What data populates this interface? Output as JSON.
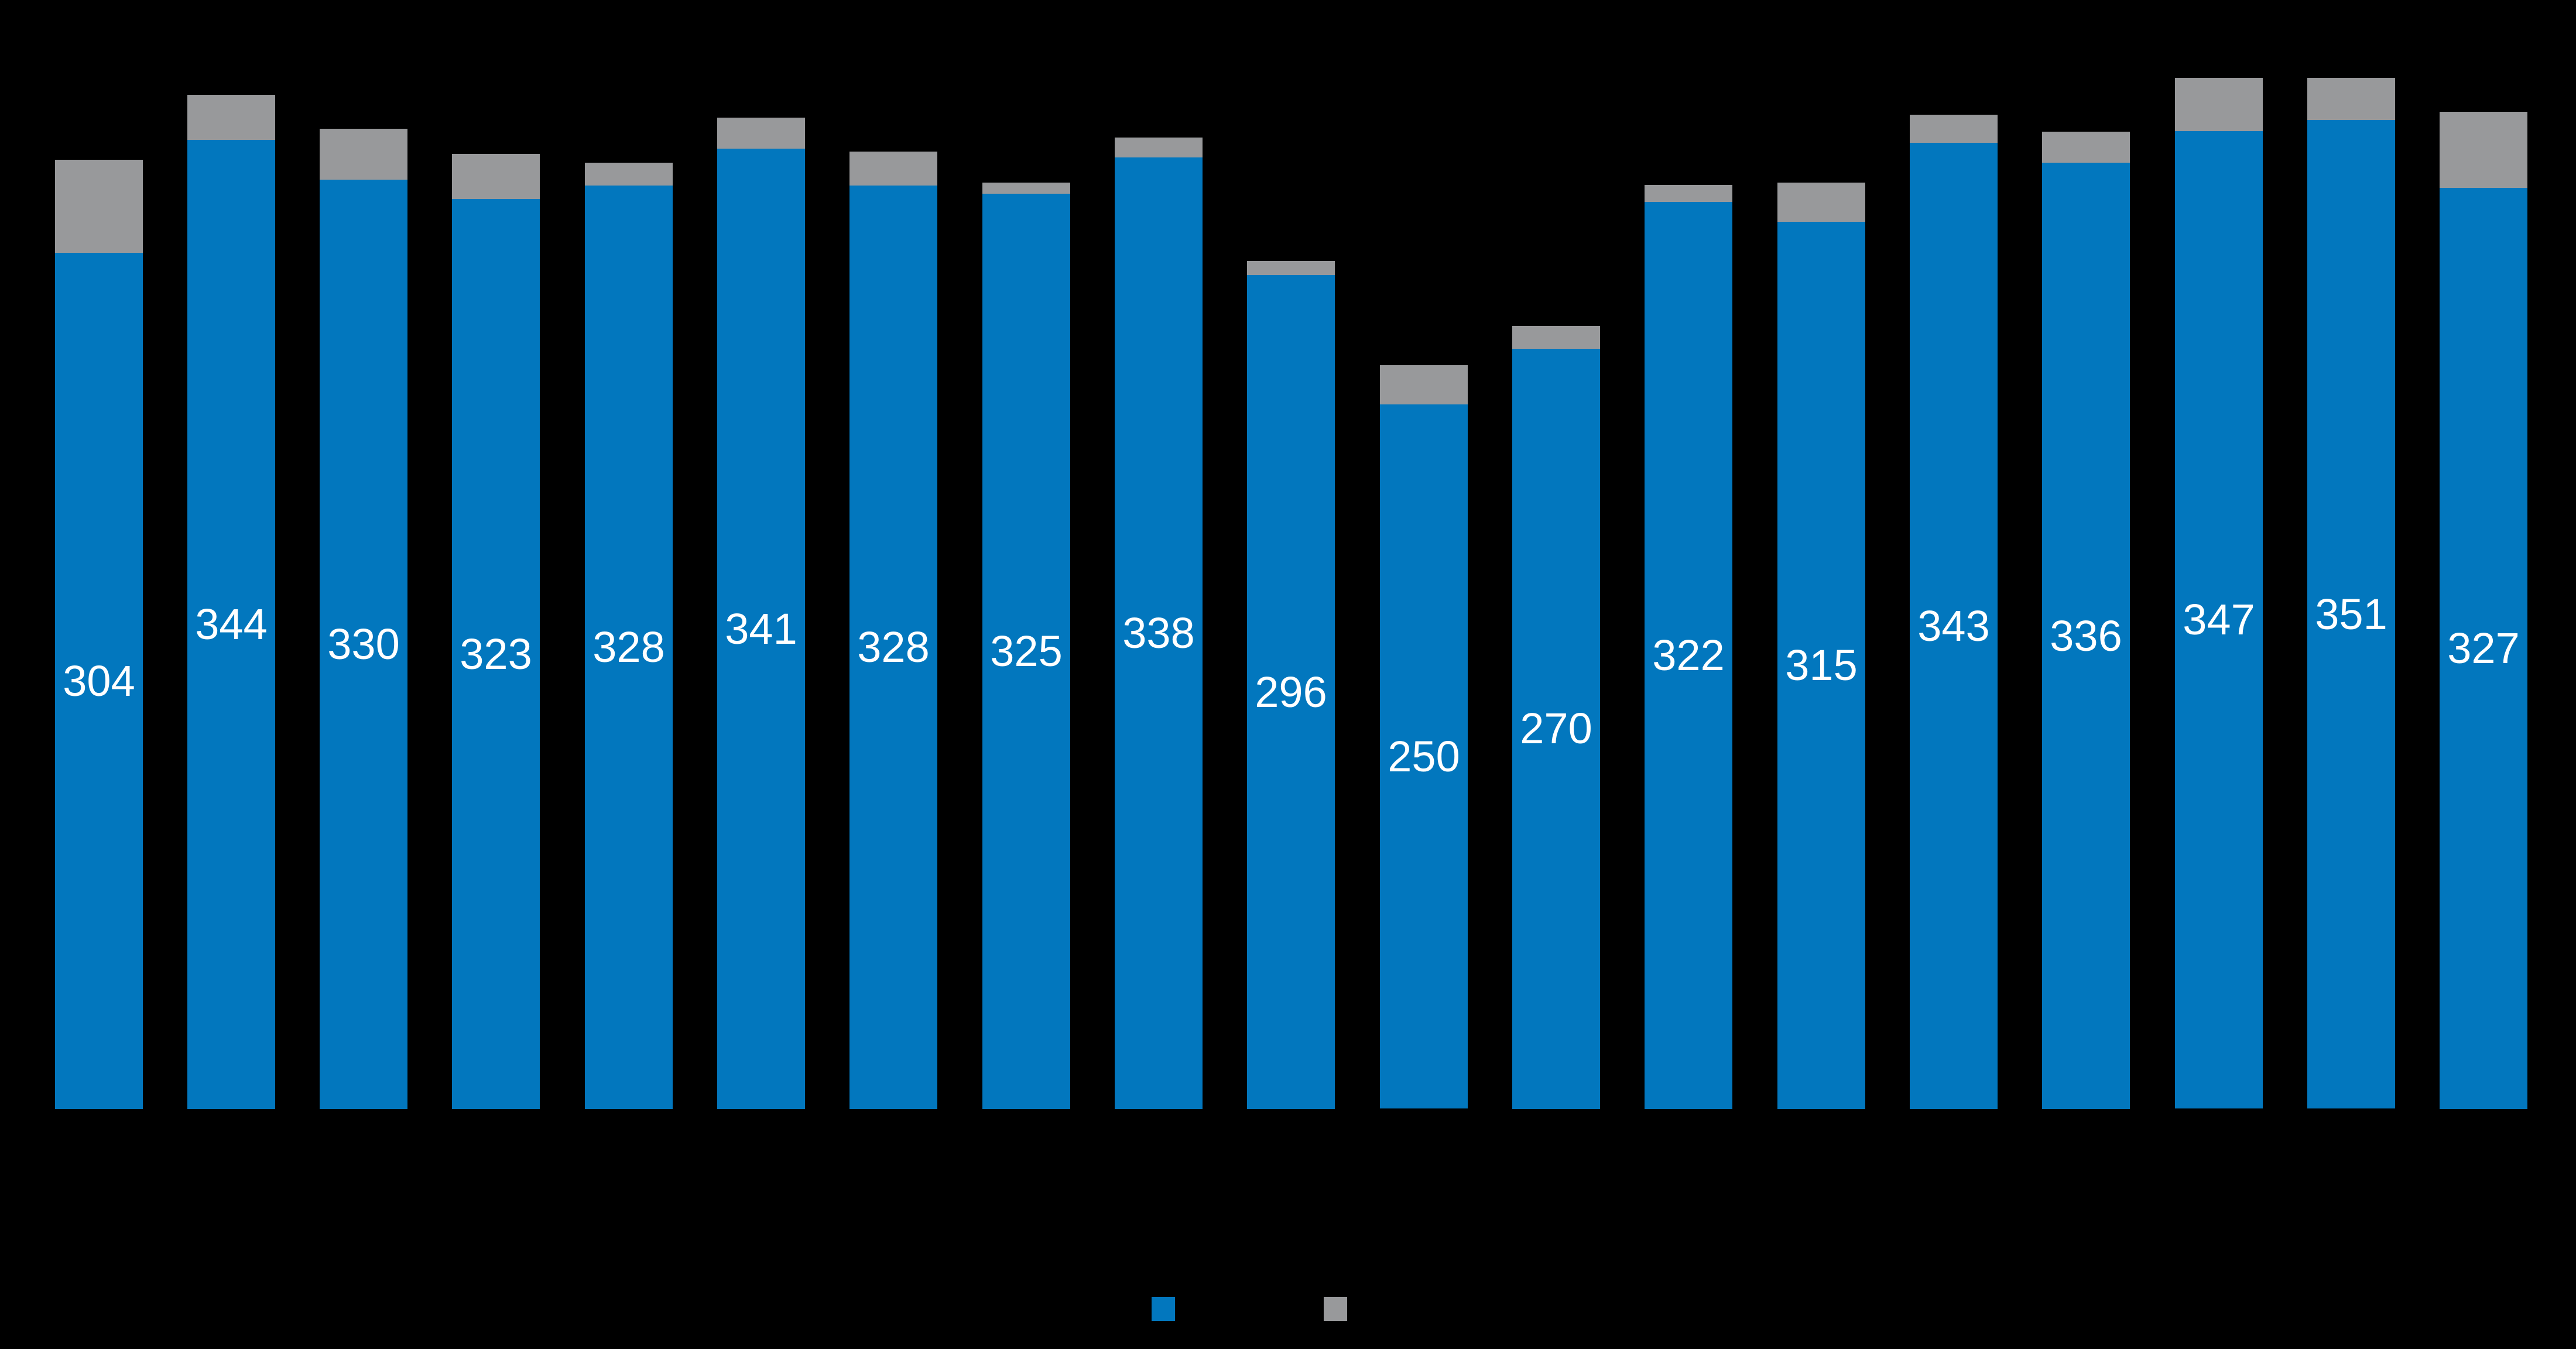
{
  "chart_data": {
    "type": "bar",
    "subtype": "stacked-column",
    "orientation": "vertical",
    "background": "#000000",
    "n_bars": 19,
    "axes_visible": false,
    "gridlines": false,
    "category_labels_visible": false,
    "series": [
      {
        "name": "blue",
        "color": "#0277BE",
        "values": [
          304,
          344,
          330,
          323,
          328,
          341,
          328,
          325,
          338,
          296,
          250,
          270,
          322,
          315,
          343,
          336,
          347,
          351,
          327
        ],
        "data_labels": {
          "visible": true,
          "color": "#FFFFFF",
          "position": "center"
        }
      },
      {
        "name": "gray",
        "color": "#98999B",
        "values": [
          33,
          16,
          18,
          16,
          8,
          11,
          12,
          4,
          7,
          5,
          14,
          8,
          6,
          14,
          10,
          11,
          19,
          15,
          27
        ],
        "values_estimated_from_pixels": true,
        "data_labels": {
          "visible": false
        }
      }
    ],
    "legend": {
      "position": "bottom-center",
      "entries": [
        {
          "swatch_color": "#0277BE",
          "label_visible": false
        },
        {
          "swatch_color": "#98999B",
          "label_visible": false
        }
      ]
    }
  }
}
